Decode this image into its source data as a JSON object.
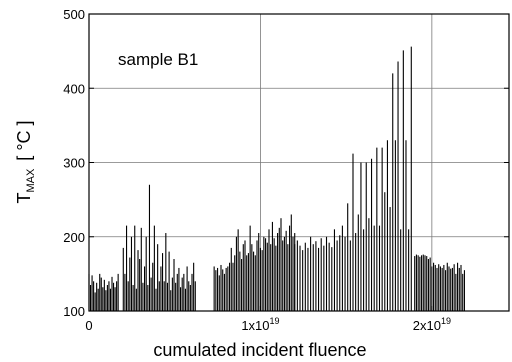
{
  "chart_data": {
    "type": "bar",
    "annotation": "sample B1",
    "xlabel": "cumulated incident fluence",
    "ylabel": {
      "main": "T",
      "subscript": "MAX",
      "unit": "[ °C ]"
    },
    "xlim": [
      0,
      2.45e+19
    ],
    "ylim": [
      100,
      500
    ],
    "grid": true,
    "x_ticks": [
      {
        "value": 0,
        "label": "0",
        "base": "0",
        "exp": ""
      },
      {
        "value": 1e+19,
        "label": "1x10^19",
        "base": "1x10",
        "exp": "19"
      },
      {
        "value": 2e+19,
        "label": "2x10^19",
        "base": "2x10",
        "exp": "19"
      }
    ],
    "y_ticks": [
      {
        "value": 100,
        "label": "100"
      },
      {
        "value": 200,
        "label": "200"
      },
      {
        "value": 300,
        "label": "300"
      },
      {
        "value": 400,
        "label": "400"
      },
      {
        "value": 500,
        "label": "500"
      }
    ],
    "series": [
      {
        "groups": [
          {
            "x_start": 0.0,
            "x_end": 1.7e+18,
            "values": [
              150,
              135,
              148,
              140,
              125,
              138,
              130,
              150,
              145,
              132,
              142,
              128,
              135,
              140,
              130,
              146,
              138,
              132,
              140,
              150
            ]
          },
          {
            "x_start": 2e+18,
            "x_end": 6.2e+18,
            "values": [
              185,
              150,
              215,
              140,
              172,
              200,
              135,
              215,
              130,
              182,
              170,
              212,
              138,
              160,
              200,
              135,
              270,
              145,
              165,
              215,
              130,
              190,
              140,
              160,
              178,
              140,
              205,
              138,
              180,
              128,
              145,
              170,
              138,
              150,
              158,
              132,
              145,
              150,
              130,
              160,
              140,
              135,
              150,
              165,
              140
            ]
          },
          {
            "x_start": 7.3e+18,
            "x_end": 1.2e+19,
            "values": [
              160,
              155,
              158,
              148,
              162,
              156,
              150,
              158,
              160,
              165,
              185,
              165,
              175,
              200,
              210,
              180,
              170,
              190,
              195,
              175,
              178,
              215,
              190,
              180,
              175,
              195,
              205,
              185,
              182,
              200,
              198,
              192,
              210,
              190,
              220,
              198,
              188,
              205,
              212,
              225,
              195,
              200,
              208,
              190,
              215,
              230,
              200,
              205
            ]
          },
          {
            "x_start": 1.2e+19,
            "x_end": 1.88e+19,
            "values": [
              190,
              195,
              188,
              182,
              192,
              185,
              200,
              190,
              194,
              185,
              198,
              188,
              200,
              192,
              186,
              210,
              195,
              202,
              215,
              200,
              245,
              195,
              312,
              205,
              230,
              300,
              210,
              300,
              225,
              305,
              215,
              320,
              215,
              320,
              260,
              330,
              240,
              420,
              330,
              436,
              210,
              451,
              330,
              210,
              456
            ]
          },
          {
            "x_start": 1.9e+19,
            "x_end": 2.19e+19,
            "values": [
              174,
              176,
              175,
              173,
              175,
              176,
              175,
              174,
              170,
              172,
              160,
              165,
              162,
              158,
              163,
              160,
              158,
              162,
              155,
              165,
              160,
              157,
              158,
              163,
              150,
              165,
              158,
              162,
              150,
              155
            ]
          }
        ]
      }
    ]
  }
}
